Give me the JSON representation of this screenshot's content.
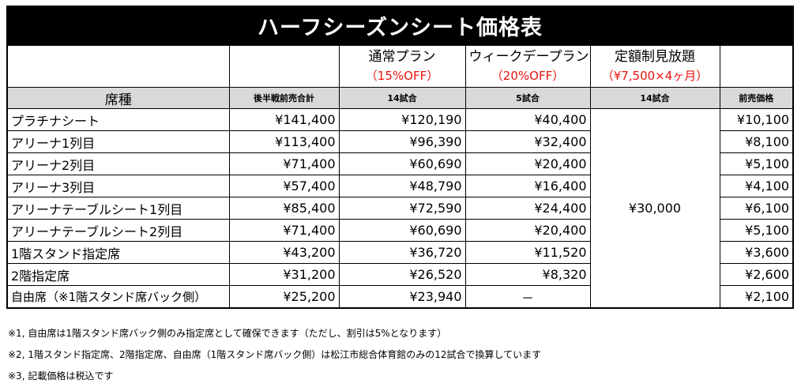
{
  "title": "ハーフシーズンシート価格表",
  "plans": {
    "regular": {
      "name": "通常プラン",
      "discount": "（15%OFF）"
    },
    "weekday": {
      "name": "ウィークデープラン",
      "discount": "（20%OFF）"
    },
    "unlimited": {
      "name": "定額制見放題",
      "discount": "（¥7,500×4ヶ月）"
    }
  },
  "headers": {
    "seat": "席種",
    "total": "後半戦前売合計",
    "regular_games": "14試合",
    "weekday_games": "5試合",
    "unlimited_games": "14試合",
    "advance": "前売価格"
  },
  "unlimited_price": "¥30,000",
  "rows": [
    {
      "seat": "プラチナシート",
      "total": "¥141,400",
      "regular": "¥120,190",
      "weekday": "¥40,400",
      "advance": "¥10,100"
    },
    {
      "seat": "アリーナ1列目",
      "total": "¥113,400",
      "regular": "¥96,390",
      "weekday": "¥32,400",
      "advance": "¥8,100"
    },
    {
      "seat": "アリーナ2列目",
      "total": "¥71,400",
      "regular": "¥60,690",
      "weekday": "¥20,400",
      "advance": "¥5,100"
    },
    {
      "seat": "アリーナ3列目",
      "total": "¥57,400",
      "regular": "¥48,790",
      "weekday": "¥16,400",
      "advance": "¥4,100"
    },
    {
      "seat": "アリーナテーブルシート1列目",
      "total": "¥85,400",
      "regular": "¥72,590",
      "weekday": "¥24,400",
      "advance": "¥6,100"
    },
    {
      "seat": "アリーナテーブルシート2列目",
      "total": "¥71,400",
      "regular": "¥60,690",
      "weekday": "¥20,400",
      "advance": "¥5,100"
    },
    {
      "seat": "1階スタンド指定席",
      "total": "¥43,200",
      "regular": "¥36,720",
      "weekday": "¥11,520",
      "advance": "¥3,600"
    },
    {
      "seat": "2階指定席",
      "total": "¥31,200",
      "regular": "¥26,520",
      "weekday": "¥8,320",
      "advance": "¥2,600"
    },
    {
      "seat": "自由席（※1階スタンド席バック側）",
      "total": "¥25,200",
      "regular": "¥23,940",
      "weekday": "－",
      "advance": "¥2,100"
    }
  ],
  "notes": [
    "※1, 自由席は1階スタンド席バック側のみ指定席として確保できます（ただし、割引は5%となります）",
    "※2, 1階スタンド指定席、2階指定席、自由席（1階スタンド席バック側）は松江市総合体育館のみの12試合で換算しています",
    "※3, 記載価格は税込です"
  ]
}
